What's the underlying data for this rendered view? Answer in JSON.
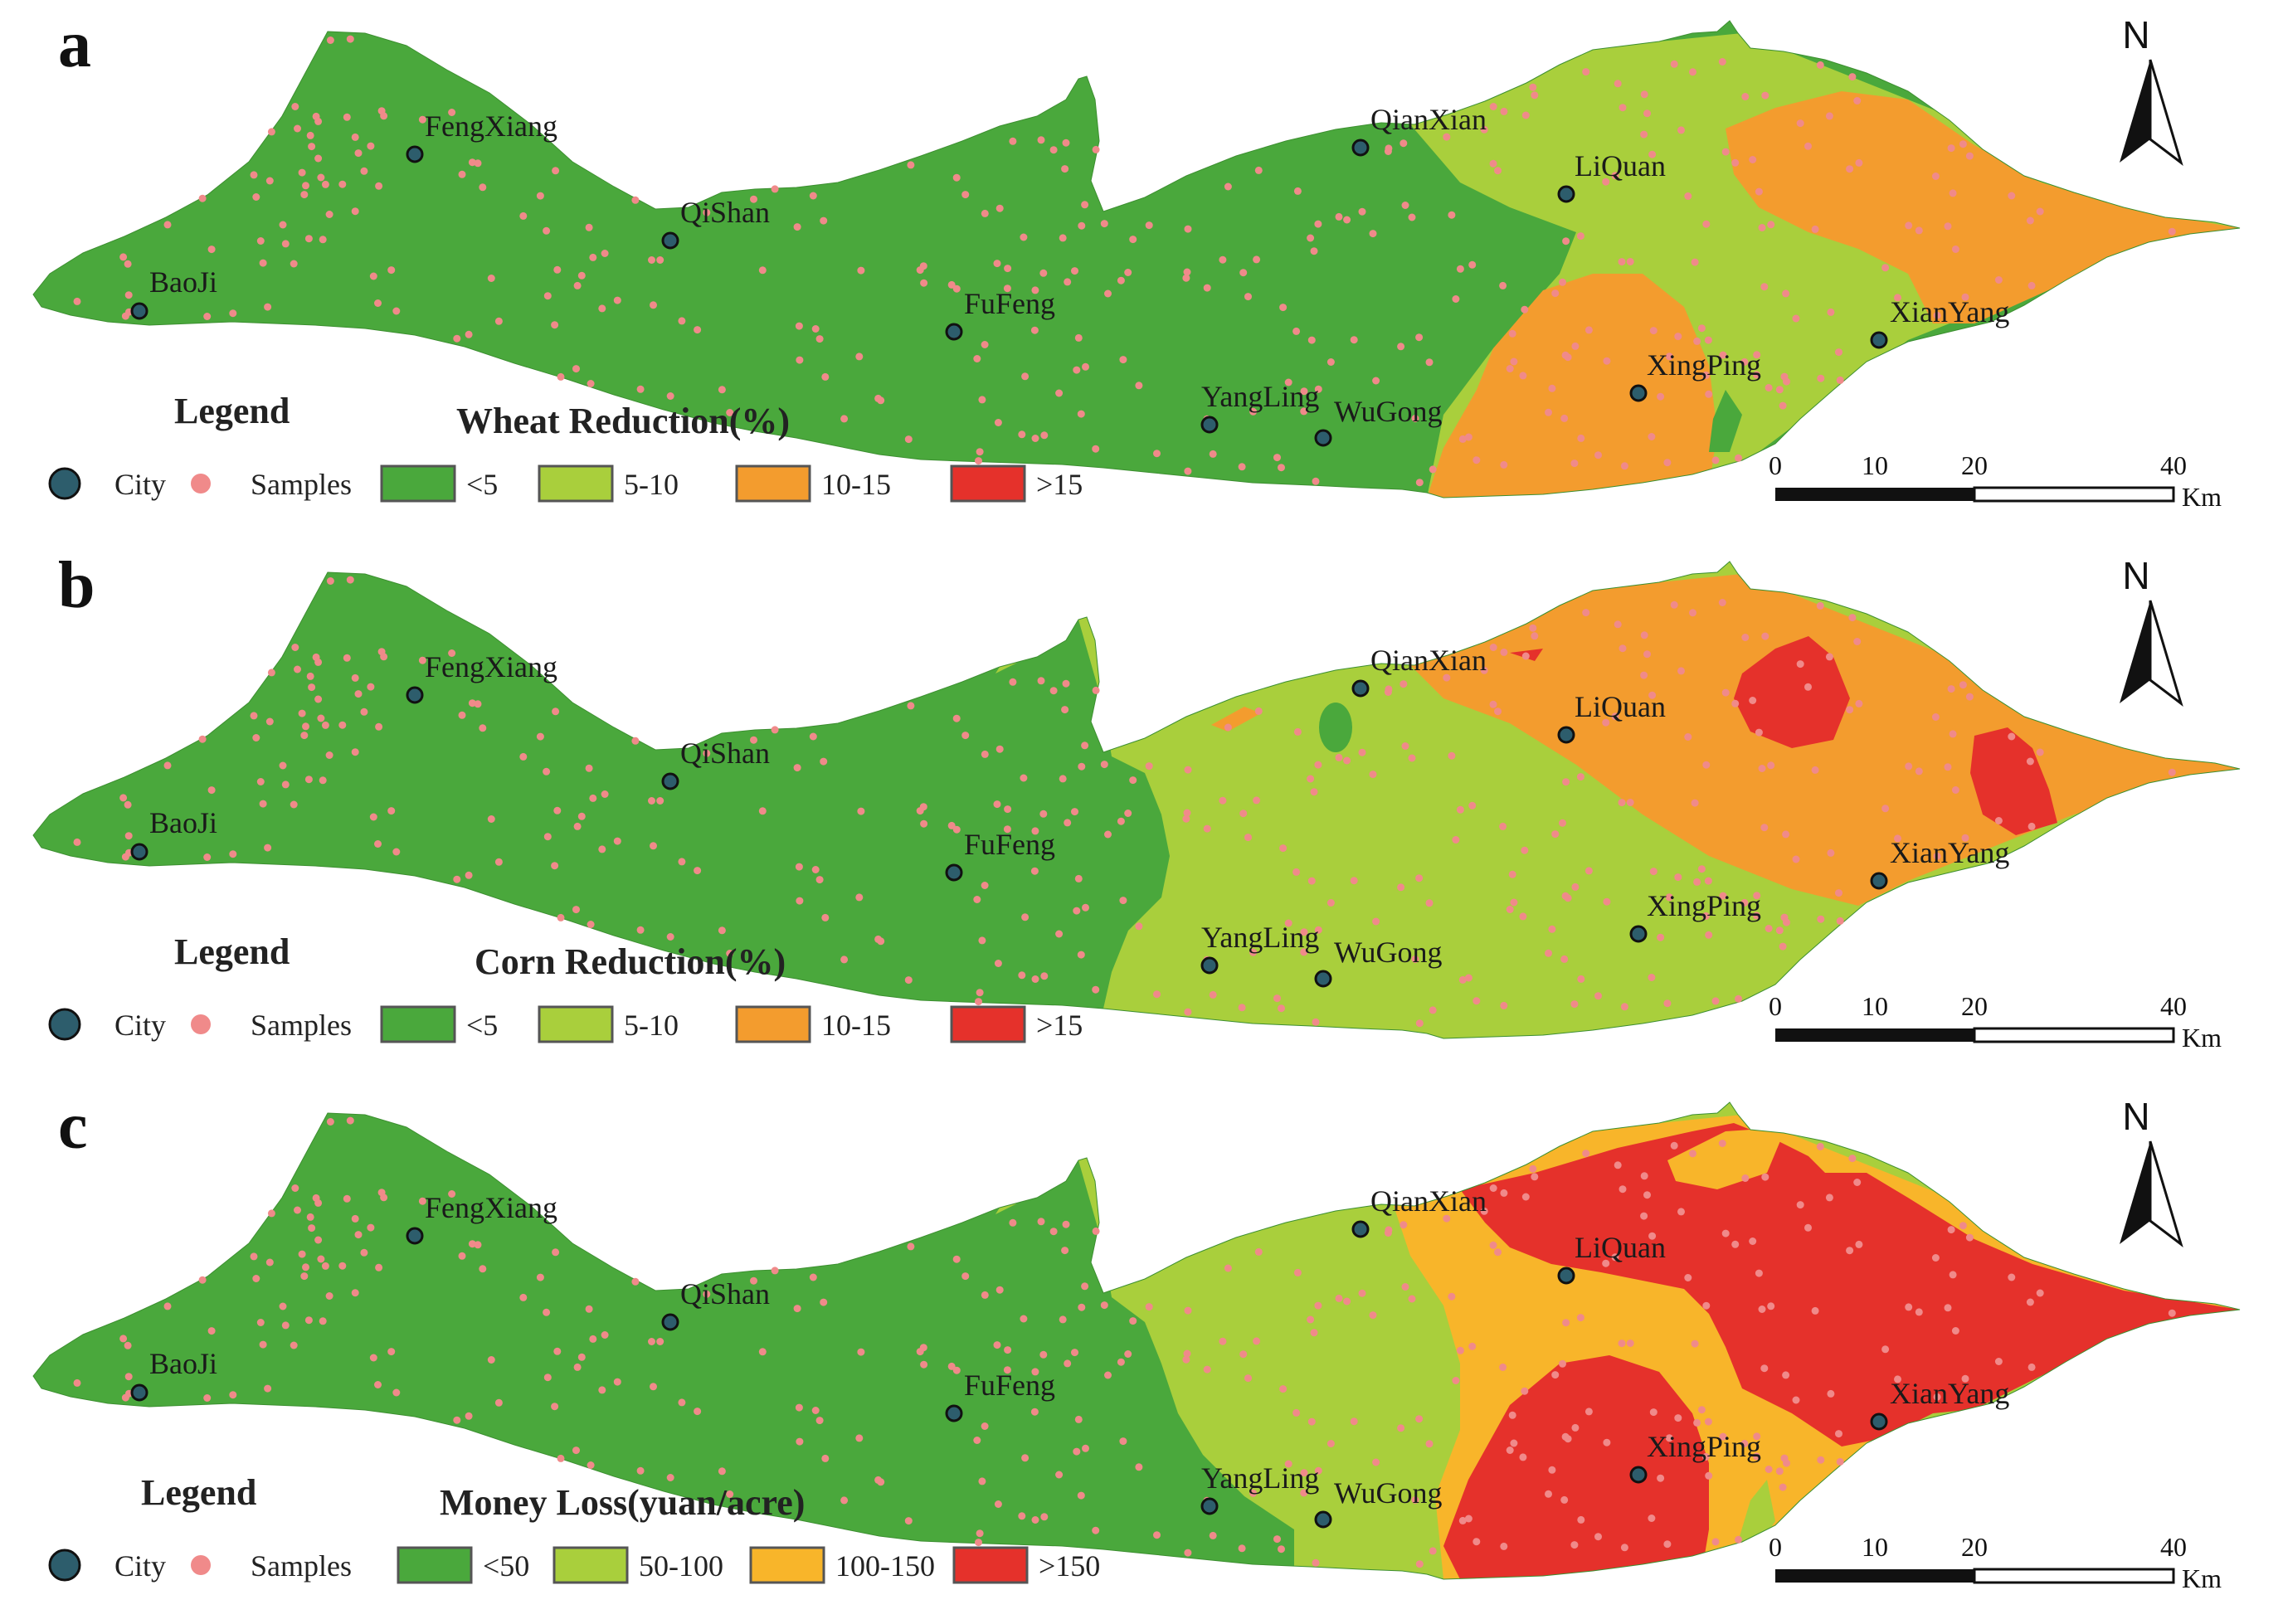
{
  "colors": {
    "dark_green": "#4aa83c",
    "light_green": "#a9cf3c",
    "orange": "#f39c2e",
    "red": "#e5312b",
    "amber": "#f8b52a",
    "city_fill": "#2d5d6c",
    "sample": "#f08a8a"
  },
  "cities": [
    "BaoJi",
    "FengXiang",
    "QiShan",
    "FuFeng",
    "QianXian",
    "LiQuan",
    "YangLing",
    "WuGong",
    "XingPing",
    "XianYang"
  ],
  "scalebar": {
    "ticks": [
      "0",
      "10",
      "20",
      "40"
    ],
    "unit": "Km"
  },
  "north_label": "N",
  "panels": [
    {
      "letter": "a",
      "legend_label": "Legend",
      "title": "Wheat Reduction(%)",
      "city_label": "City",
      "samples_label": "Samples",
      "classes": [
        {
          "label": "<5",
          "color": "#4aa83c"
        },
        {
          "label": "5-10",
          "color": "#a9cf3c"
        },
        {
          "label": "10-15",
          "color": "#f39c2e"
        },
        {
          "label": ">15",
          "color": "#e5312b"
        }
      ]
    },
    {
      "letter": "b",
      "legend_label": "Legend",
      "title": "Corn Reduction(%)",
      "city_label": "City",
      "samples_label": "Samples",
      "classes": [
        {
          "label": "<5",
          "color": "#4aa83c"
        },
        {
          "label": "5-10",
          "color": "#a9cf3c"
        },
        {
          "label": "10-15",
          "color": "#f39c2e"
        },
        {
          "label": ">15",
          "color": "#e5312b"
        }
      ]
    },
    {
      "letter": "c",
      "legend_label": "Legend",
      "title": "Money Loss(yuan/acre)",
      "city_label": "City",
      "samples_label": "Samples",
      "classes": [
        {
          "label": "<50",
          "color": "#4aa83c"
        },
        {
          "label": "50-100",
          "color": "#a9cf3c"
        },
        {
          "label": "100-150",
          "color": "#f8b52a"
        },
        {
          "label": ">150",
          "color": "#e5312b"
        }
      ]
    }
  ]
}
